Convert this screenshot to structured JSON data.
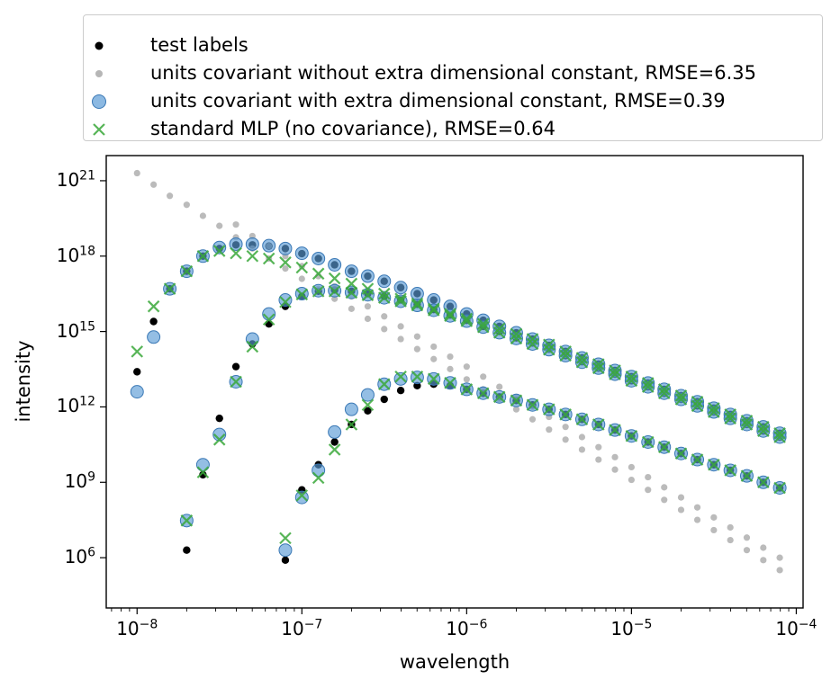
{
  "chart_data": {
    "type": "scatter",
    "title": "",
    "xlabel": "wavelength",
    "ylabel": "intensity",
    "xscale": "log",
    "yscale": "log",
    "xlim": [
      6.5e-09,
      0.00011
    ],
    "ylim": [
      10000.0,
      1e+22
    ],
    "xticks": [
      {
        "base": "10",
        "exp": "−8",
        "value": 1e-08
      },
      {
        "base": "10",
        "exp": "−7",
        "value": 1e-07
      },
      {
        "base": "10",
        "exp": "−6",
        "value": 1e-06
      },
      {
        "base": "10",
        "exp": "−5",
        "value": 1e-05
      },
      {
        "base": "10",
        "exp": "−4",
        "value": 0.0001
      }
    ],
    "yticks": [
      {
        "base": "10",
        "exp": "6",
        "value": 1000000.0
      },
      {
        "base": "10",
        "exp": "9",
        "value": 1000000000.0
      },
      {
        "base": "10",
        "exp": "12",
        "value": 1000000000000.0
      },
      {
        "base": "10",
        "exp": "15",
        "value": 1000000000000000.0
      },
      {
        "base": "10",
        "exp": "18",
        "value": 1e+18
      },
      {
        "base": "10",
        "exp": "21",
        "value": 1e+21
      }
    ],
    "legend_position": "above",
    "x": [
      1e-08,
      1.26e-08,
      1.58e-08,
      2e-08,
      2.51e-08,
      3.16e-08,
      3.98e-08,
      5.01e-08,
      6.31e-08,
      7.94e-08,
      1e-07,
      1.26e-07,
      1.58e-07,
      2e-07,
      2.51e-07,
      3.16e-07,
      3.98e-07,
      5.01e-07,
      6.31e-07,
      7.94e-07,
      1e-06,
      1.26e-06,
      1.58e-06,
      2e-06,
      2.51e-06,
      3.16e-06,
      3.98e-06,
      5.01e-06,
      6.31e-06,
      7.94e-06,
      1e-05,
      1.26e-05,
      1.58e-05,
      2e-05,
      2.51e-05,
      3.16e-05,
      3.98e-05,
      5.01e-05,
      6.31e-05,
      7.94e-05
    ],
    "series": [
      {
        "name": "test labels",
        "color": "#000000",
        "marker": "dot",
        "values": [
          [
            25000000000000.0,
            2500000000000000.0,
            5e+16,
            2.5e+17,
            1e+18,
            2e+18,
            2.8e+18,
            2.8e+18,
            2.5e+18,
            2e+18,
            1.25e+18,
            8e+17,
            4.5e+17,
            2.5e+17,
            1.6e+17,
            1e+17,
            5.6e+16,
            3.2e+16,
            1.8e+16,
            1e+16,
            5000000000000000.0,
            2800000000000000.0,
            1600000000000000.0,
            890000000000000.0,
            500000000000000.0,
            280000000000000.0,
            160000000000000.0,
            89000000000000.0,
            50000000000000.0,
            28000000000000.0,
            16000000000000.0,
            8900000000000.0,
            5000000000000.0,
            2800000000000.0,
            1600000000000.0,
            890000000000.0,
            500000000000.0,
            280000000000.0,
            160000000000.0,
            89000000000.0
          ],
          [
            null,
            null,
            null,
            2000000.0,
            2000000000.0,
            350000000000.0,
            40000000000000.0,
            320000000000000.0,
            2000000000000000.0,
            1e+16,
            2.5e+16,
            4e+16,
            4.5e+16,
            4e+16,
            3.2e+16,
            2.5e+16,
            1.8e+16,
            1.2e+16,
            7500000000000000.0,
            4500000000000000.0,
            2800000000000000.0,
            1600000000000000.0,
            1000000000000000.0,
            560000000000000.0,
            350000000000000.0,
            200000000000000.0,
            110000000000000.0,
            63000000000000.0,
            35000000000000.0,
            20000000000000.0,
            11000000000000.0,
            6300000000000.0,
            3500000000000.0,
            2000000000000.0,
            1100000000000.0,
            630000000000.0,
            350000000000.0,
            200000000000.0,
            110000000000.0,
            63000000000.0
          ],
          [
            null,
            null,
            null,
            null,
            null,
            null,
            null,
            null,
            null,
            800000.0,
            500000000.0,
            5000000000.0,
            40000000000.0,
            200000000000.0,
            700000000000.0,
            2000000000000.0,
            4500000000000.0,
            7000000000000.0,
            8000000000000.0,
            7000000000000.0,
            5000000000000.0,
            3500000000000.0,
            2500000000000.0,
            1800000000000.0,
            1200000000000.0,
            800000000000.0,
            500000000000.0,
            320000000000.0,
            200000000000.0,
            120000000000.0,
            70000000000.0,
            40000000000.0,
            25000000000.0,
            14000000000.0,
            8000000000.0,
            5000000000.0,
            3000000000.0,
            1800000000.0,
            1000000000.0,
            600000000.0
          ]
        ]
      },
      {
        "name": "units covariant without extra dimensional constant, RMSE=6.35",
        "color": "#9e9e9e",
        "marker": "dot-small",
        "values": [
          [
            2e+21,
            7e+20,
            2.5e+20,
            1.1e+20,
            4e+19,
            1.6e+19,
            5.6e+18,
            2e+18,
            8e+17,
            3.2e+17,
            1.25e+17,
            5e+16,
            2e+16,
            8000000000000000.0,
            3200000000000000.0,
            1250000000000000.0,
            500000000000000.0,
            200000000000000.0,
            80000000000000.0,
            32000000000000.0,
            12500000000000.0,
            5000000000000.0,
            2000000000000.0,
            800000000000.0,
            320000000000.0,
            125000000000.0,
            50000000000.0,
            20000000000.0,
            8000000000.0,
            3200000000.0,
            1250000000.0,
            500000000.0,
            200000000.0,
            80000000.0,
            32000000.0,
            12500000.0,
            5000000.0,
            2000000.0,
            800000.0,
            320000.0
          ],
          [
            null,
            null,
            null,
            null,
            null,
            null,
            1.8e+19,
            6.3e+18,
            2.5e+18,
            1e+18,
            4e+17,
            1.6e+17,
            6.3e+16,
            2.5e+16,
            1e+16,
            4000000000000000.0,
            1600000000000000.0,
            630000000000000.0,
            250000000000000.0,
            100000000000000.0,
            40000000000000.0,
            16000000000000.0,
            6300000000000.0,
            2500000000000.0,
            1000000000000.0,
            400000000000.0,
            160000000000.0,
            63000000000.0,
            25000000000.0,
            10000000000.0,
            4000000000.0,
            1600000000.0,
            630000000.0,
            250000000.0,
            100000000.0,
            40000000.0,
            16000000.0,
            6300000.0,
            2500000.0,
            1000000.0
          ]
        ]
      },
      {
        "name": "units covariant with extra dimensional constant, RMSE=0.39",
        "color": "#5b9bd5",
        "marker": "circle",
        "values": [
          [
            4000000000000.0,
            600000000000000.0,
            5e+16,
            2.5e+17,
            1e+18,
            2.2e+18,
            3e+18,
            3e+18,
            2.6e+18,
            2e+18,
            1.3e+18,
            8e+17,
            4.5e+17,
            2.5e+17,
            1.6e+17,
            1e+17,
            5.6e+16,
            3.2e+16,
            1.8e+16,
            1e+16,
            5000000000000000.0,
            2800000000000000.0,
            1600000000000000.0,
            890000000000000.0,
            500000000000000.0,
            280000000000000.0,
            160000000000000.0,
            89000000000000.0,
            50000000000000.0,
            28000000000000.0,
            16000000000000.0,
            8900000000000.0,
            5000000000000.0,
            2800000000000.0,
            1600000000000.0,
            890000000000.0,
            500000000000.0,
            280000000000.0,
            160000000000.0,
            89000000000.0
          ],
          [
            null,
            null,
            null,
            30000000.0,
            5000000000.0,
            80000000000.0,
            10000000000000.0,
            500000000000000.0,
            5000000000000000.0,
            1.8e+16,
            3.2e+16,
            4.2e+16,
            4.2e+16,
            3.6e+16,
            2.9e+16,
            2.2e+16,
            1.6e+16,
            1.1e+16,
            7000000000000000.0,
            4200000000000000.0,
            2600000000000000.0,
            1500000000000000.0,
            900000000000000.0,
            530000000000000.0,
            320000000000000.0,
            190000000000000.0,
            110000000000000.0,
            60000000000000.0,
            35000000000000.0,
            20000000000000.0,
            11000000000000.0,
            6300000000000.0,
            3500000000000.0,
            2000000000000.0,
            1100000000000.0,
            630000000000.0,
            350000000000.0,
            200000000000.0,
            110000000000.0,
            63000000000.0
          ],
          [
            null,
            null,
            null,
            null,
            null,
            null,
            null,
            null,
            null,
            2000000.0,
            250000000.0,
            3000000000.0,
            100000000000.0,
            800000000000.0,
            3000000000000.0,
            8000000000000.0,
            13000000000000.0,
            15000000000000.0,
            13000000000000.0,
            9000000000000.0,
            5000000000000.0,
            3500000000000.0,
            2500000000000.0,
            1800000000000.0,
            1200000000000.0,
            800000000000.0,
            500000000000.0,
            320000000000.0,
            200000000000.0,
            120000000000.0,
            70000000000.0,
            40000000000.0,
            25000000000.0,
            14000000000.0,
            8000000000.0,
            5000000000.0,
            3000000000.0,
            1800000000.0,
            1000000000.0,
            600000000.0
          ]
        ]
      },
      {
        "name": "standard MLP (no covariance), RMSE=0.64",
        "color": "#3aa83a",
        "marker": "x",
        "values": [
          [
            160000000000000.0,
            1e+16,
            5e+16,
            2.5e+17,
            1e+18,
            1.6e+18,
            1.3e+18,
            1e+18,
            8e+17,
            5.6e+17,
            3.5e+17,
            2e+17,
            1.3e+17,
            8e+16,
            5e+16,
            3.2e+16,
            2e+16,
            1.3e+16,
            8000000000000000.0,
            5000000000000000.0,
            3200000000000000.0,
            2000000000000000.0,
            1300000000000000.0,
            800000000000000.0,
            500000000000000.0,
            300000000000000.0,
            160000000000000.0,
            89000000000000.0,
            50000000000000.0,
            28000000000000.0,
            16000000000000.0,
            8900000000000.0,
            5000000000000.0,
            2800000000000.0,
            1600000000000.0,
            890000000000.0,
            500000000000.0,
            280000000000.0,
            160000000000.0,
            89000000000.0
          ],
          [
            null,
            null,
            null,
            30000000.0,
            2500000000.0,
            50000000000.0,
            10000000000000.0,
            250000000000000.0,
            3000000000000000.0,
            1.5e+16,
            3e+16,
            4e+16,
            4e+16,
            3.5e+16,
            2.8e+16,
            2.2e+16,
            1.6e+16,
            1.1e+16,
            7000000000000000.0,
            4200000000000000.0,
            2600000000000000.0,
            1500000000000000.0,
            900000000000000.0,
            530000000000000.0,
            320000000000000.0,
            190000000000000.0,
            110000000000000.0,
            60000000000000.0,
            35000000000000.0,
            20000000000000.0,
            11000000000000.0,
            6300000000000.0,
            3500000000000.0,
            2000000000000.0,
            1100000000000.0,
            630000000000.0,
            350000000000.0,
            200000000000.0,
            110000000000.0,
            63000000000.0
          ],
          [
            null,
            null,
            null,
            null,
            null,
            null,
            null,
            null,
            null,
            6000000.0,
            300000000.0,
            1500000000.0,
            20000000000.0,
            200000000000.0,
            1200000000000.0,
            8000000000000.0,
            16000000000000.0,
            16000000000000.0,
            13000000000000.0,
            9000000000000.0,
            5000000000000.0,
            3500000000000.0,
            2500000000000.0,
            1800000000000.0,
            1200000000000.0,
            800000000000.0,
            500000000000.0,
            320000000000.0,
            200000000000.0,
            120000000000.0,
            70000000000.0,
            40000000000.0,
            25000000000.0,
            14000000000.0,
            8000000000.0,
            5000000000.0,
            3000000000.0,
            1800000000.0,
            1000000000.0,
            600000000.0
          ]
        ]
      }
    ]
  }
}
